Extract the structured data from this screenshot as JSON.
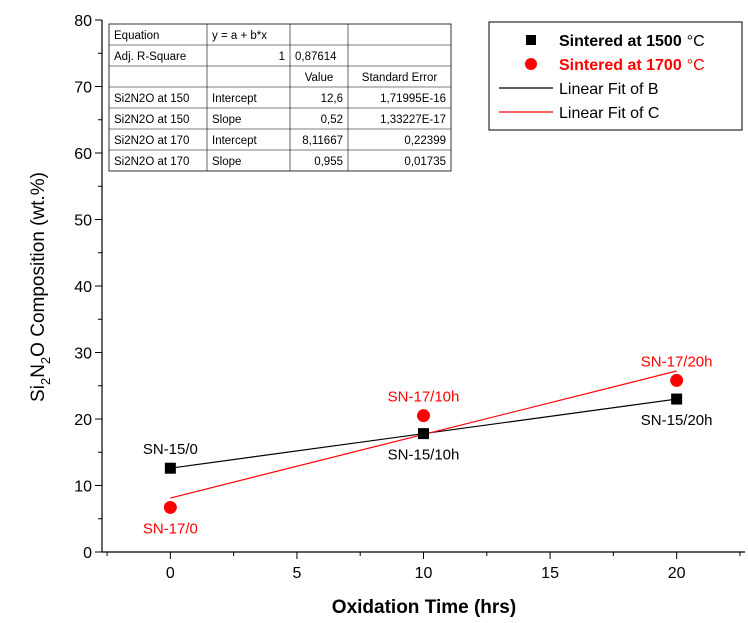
{
  "chart_data": {
    "type": "scatter",
    "xlabel": "Oxidation Time (hrs)",
    "ylabel_parts": [
      "Si",
      "2",
      "N",
      "2",
      "O Composition (wt.%)"
    ],
    "xlim": [
      -2.7,
      22.7
    ],
    "ylim": [
      0,
      80
    ],
    "xticks": [
      0,
      5,
      10,
      15,
      20
    ],
    "xtick_labels": [
      "0",
      "5",
      "10",
      "15",
      "20"
    ],
    "yticks": [
      0,
      10,
      20,
      30,
      40,
      50,
      60,
      70,
      80
    ],
    "ytick_labels": [
      "0",
      "10",
      "20",
      "30",
      "40",
      "50",
      "60",
      "70",
      "80"
    ],
    "series": [
      {
        "name": "Sintered at 1500 °C",
        "legend_main": "Sintered at 1500",
        "legend_unit": "°C",
        "marker": "square",
        "color": "#000000",
        "x": [
          0,
          10,
          20
        ],
        "y": [
          12.6,
          17.8,
          23.0
        ],
        "point_labels": [
          "SN-15/0",
          "SN-15/10h",
          "SN-15/20h"
        ],
        "label_pos": [
          "above",
          "below",
          "below"
        ]
      },
      {
        "name": "Sintered at 1700 °C",
        "legend_main": "Sintered at 1700",
        "legend_unit": "°C",
        "marker": "circle",
        "color": "#ff0000",
        "x": [
          0,
          10,
          20
        ],
        "y": [
          6.7,
          20.5,
          25.8
        ],
        "point_labels": [
          "SN-17/0",
          "SN-17/10h",
          "SN-17/20h"
        ],
        "label_pos": [
          "below",
          "above",
          "above"
        ]
      }
    ],
    "fits": [
      {
        "name": "Linear Fit of B",
        "color": "#000000",
        "intercept": 12.6,
        "slope": 0.52,
        "x_range": [
          0,
          20
        ]
      },
      {
        "name": "Linear Fit of C",
        "color": "#ff0000",
        "intercept": 8.11667,
        "slope": 0.955,
        "x_range": [
          0,
          20
        ]
      }
    ],
    "legend_position": "top-right",
    "grid": false,
    "stats_table": {
      "rows": [
        [
          "Equation",
          "y = a + b*x",
          "",
          ""
        ],
        [
          "Adj. R-Square",
          "1",
          "0,87614",
          ""
        ],
        [
          "",
          "",
          "Value",
          "Standard Error"
        ],
        [
          "Si2N2O at 150",
          "Intercept",
          "12,6",
          "1,71995E-16"
        ],
        [
          "Si2N2O at 150",
          "Slope",
          "0,52",
          "1,33227E-17"
        ],
        [
          "Si2N2O at 170",
          "Intercept",
          "8,11667",
          "0,22399"
        ],
        [
          "Si2N2O at 170",
          "Slope",
          "0,955",
          "0,01735"
        ]
      ]
    }
  }
}
